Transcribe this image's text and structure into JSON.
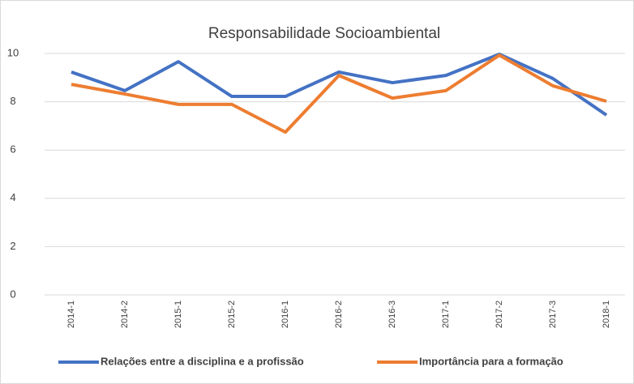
{
  "chart_data": {
    "type": "line",
    "title": "Responsabilidade Socioambiental",
    "categories": [
      "2014-1",
      "2014-2",
      "2015-1",
      "2015-2",
      "2016-1",
      "2016-2",
      "2016-3",
      "2017-1",
      "2017-2",
      "2017-3",
      "2018-1"
    ],
    "series": [
      {
        "name": "Relações entre a disciplina e a profissão",
        "color": "#4472c4",
        "values": [
          9.23,
          8.46,
          9.66,
          8.22,
          8.22,
          9.23,
          8.79,
          9.09,
          9.97,
          8.96,
          7.45
        ]
      },
      {
        "name": "Importância para a formação",
        "color": "#ed7d31",
        "values": [
          8.72,
          8.32,
          7.89,
          7.89,
          6.74,
          9.09,
          8.15,
          8.46,
          9.93,
          8.66,
          8.02
        ]
      }
    ],
    "ylim": [
      0,
      10
    ],
    "yticks": [
      0,
      2,
      4,
      6,
      8,
      10
    ],
    "grid": true,
    "legend": "bottom"
  }
}
